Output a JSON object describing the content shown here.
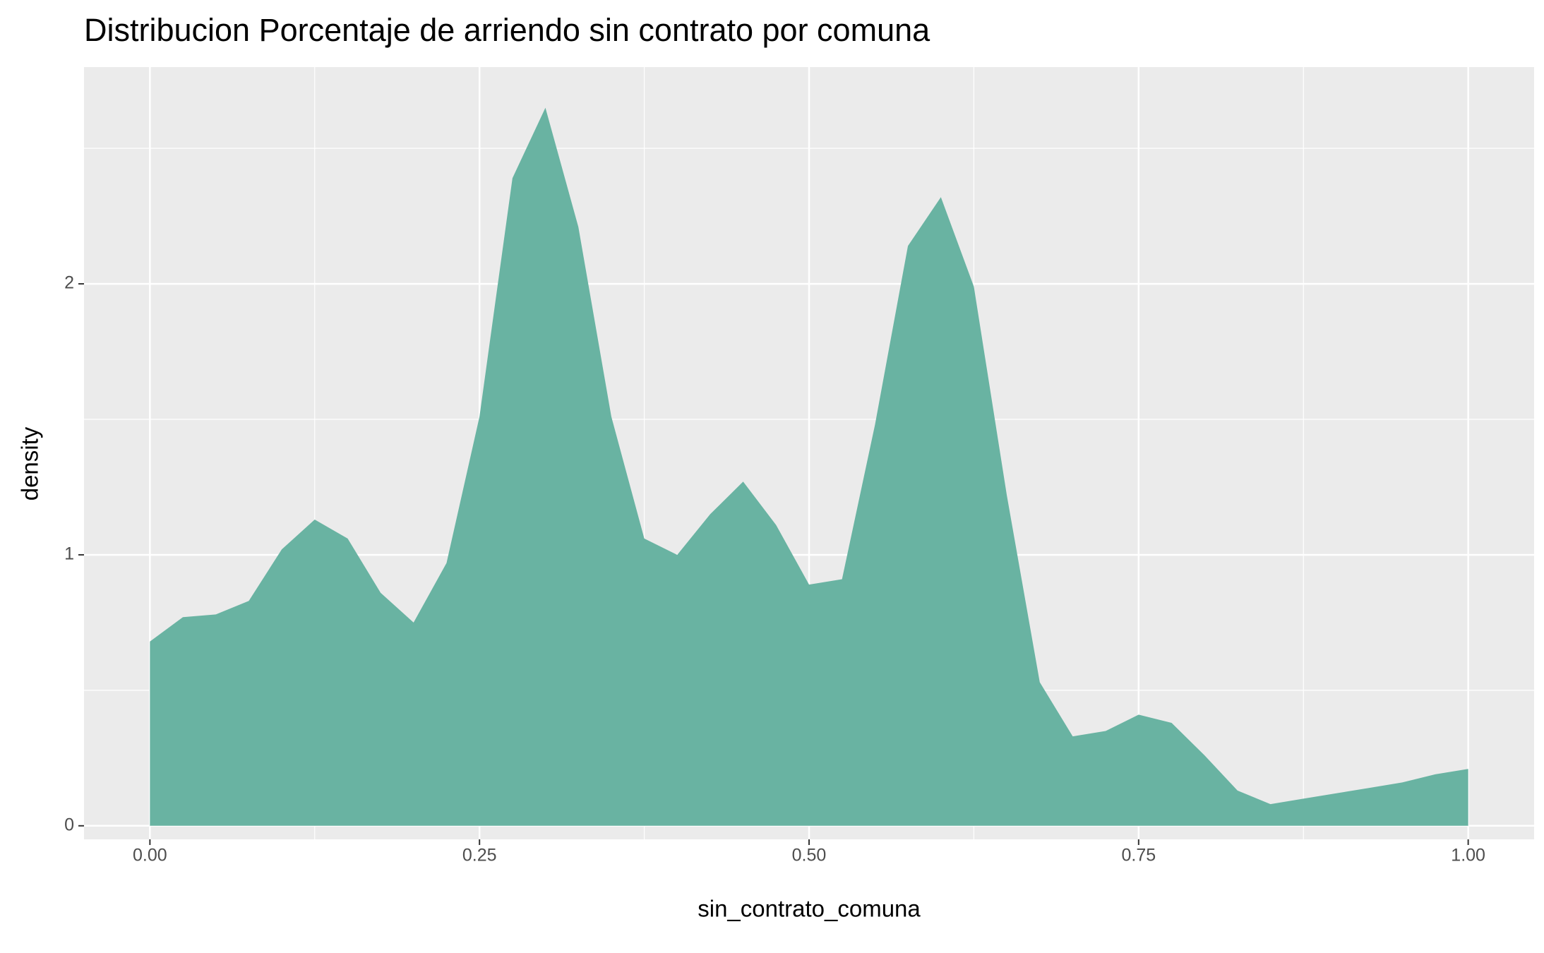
{
  "chart_data": {
    "type": "area",
    "title": "Distribucion Porcentaje de arriendo sin contrato por comuna",
    "x_label": "sin_contrato_comuna",
    "y_label": "density",
    "color": "#69b3a2",
    "grid": true,
    "x": [
      0,
      0.025,
      0.05,
      0.075,
      0.1,
      0.125,
      0.15,
      0.175,
      0.2,
      0.225,
      0.25,
      0.275,
      0.3,
      0.325,
      0.35,
      0.375,
      0.4,
      0.425,
      0.45,
      0.475,
      0.5,
      0.525,
      0.55,
      0.575,
      0.6,
      0.625,
      0.65,
      0.675,
      0.7,
      0.725,
      0.75,
      0.775,
      0.8,
      0.825,
      0.85,
      0.875,
      0.9,
      0.925,
      0.95,
      0.975,
      1.0
    ],
    "values": [
      0.68,
      0.77,
      0.78,
      0.83,
      1.02,
      1.13,
      1.06,
      0.86,
      0.75,
      0.97,
      1.51,
      2.39,
      2.65,
      2.21,
      1.51,
      1.06,
      1.0,
      1.15,
      1.27,
      1.11,
      0.89,
      0.91,
      1.48,
      2.14,
      2.32,
      1.99,
      1.22,
      0.53,
      0.33,
      0.35,
      0.41,
      0.38,
      0.26,
      0.13,
      0.08,
      0.1,
      0.12,
      0.14,
      0.16,
      0.19,
      0.21
    ],
    "xlim": [
      -0.05,
      1.05
    ],
    "ylim": [
      -0.05,
      2.8
    ],
    "xticks": [
      {
        "value": 0,
        "label": "0.00"
      },
      0.25,
      {
        "value": 0.5,
        "label": "0.50"
      },
      0.75,
      {
        "value": 1,
        "label": "1.00"
      }
    ],
    "yticks": [
      0,
      1,
      2
    ]
  }
}
